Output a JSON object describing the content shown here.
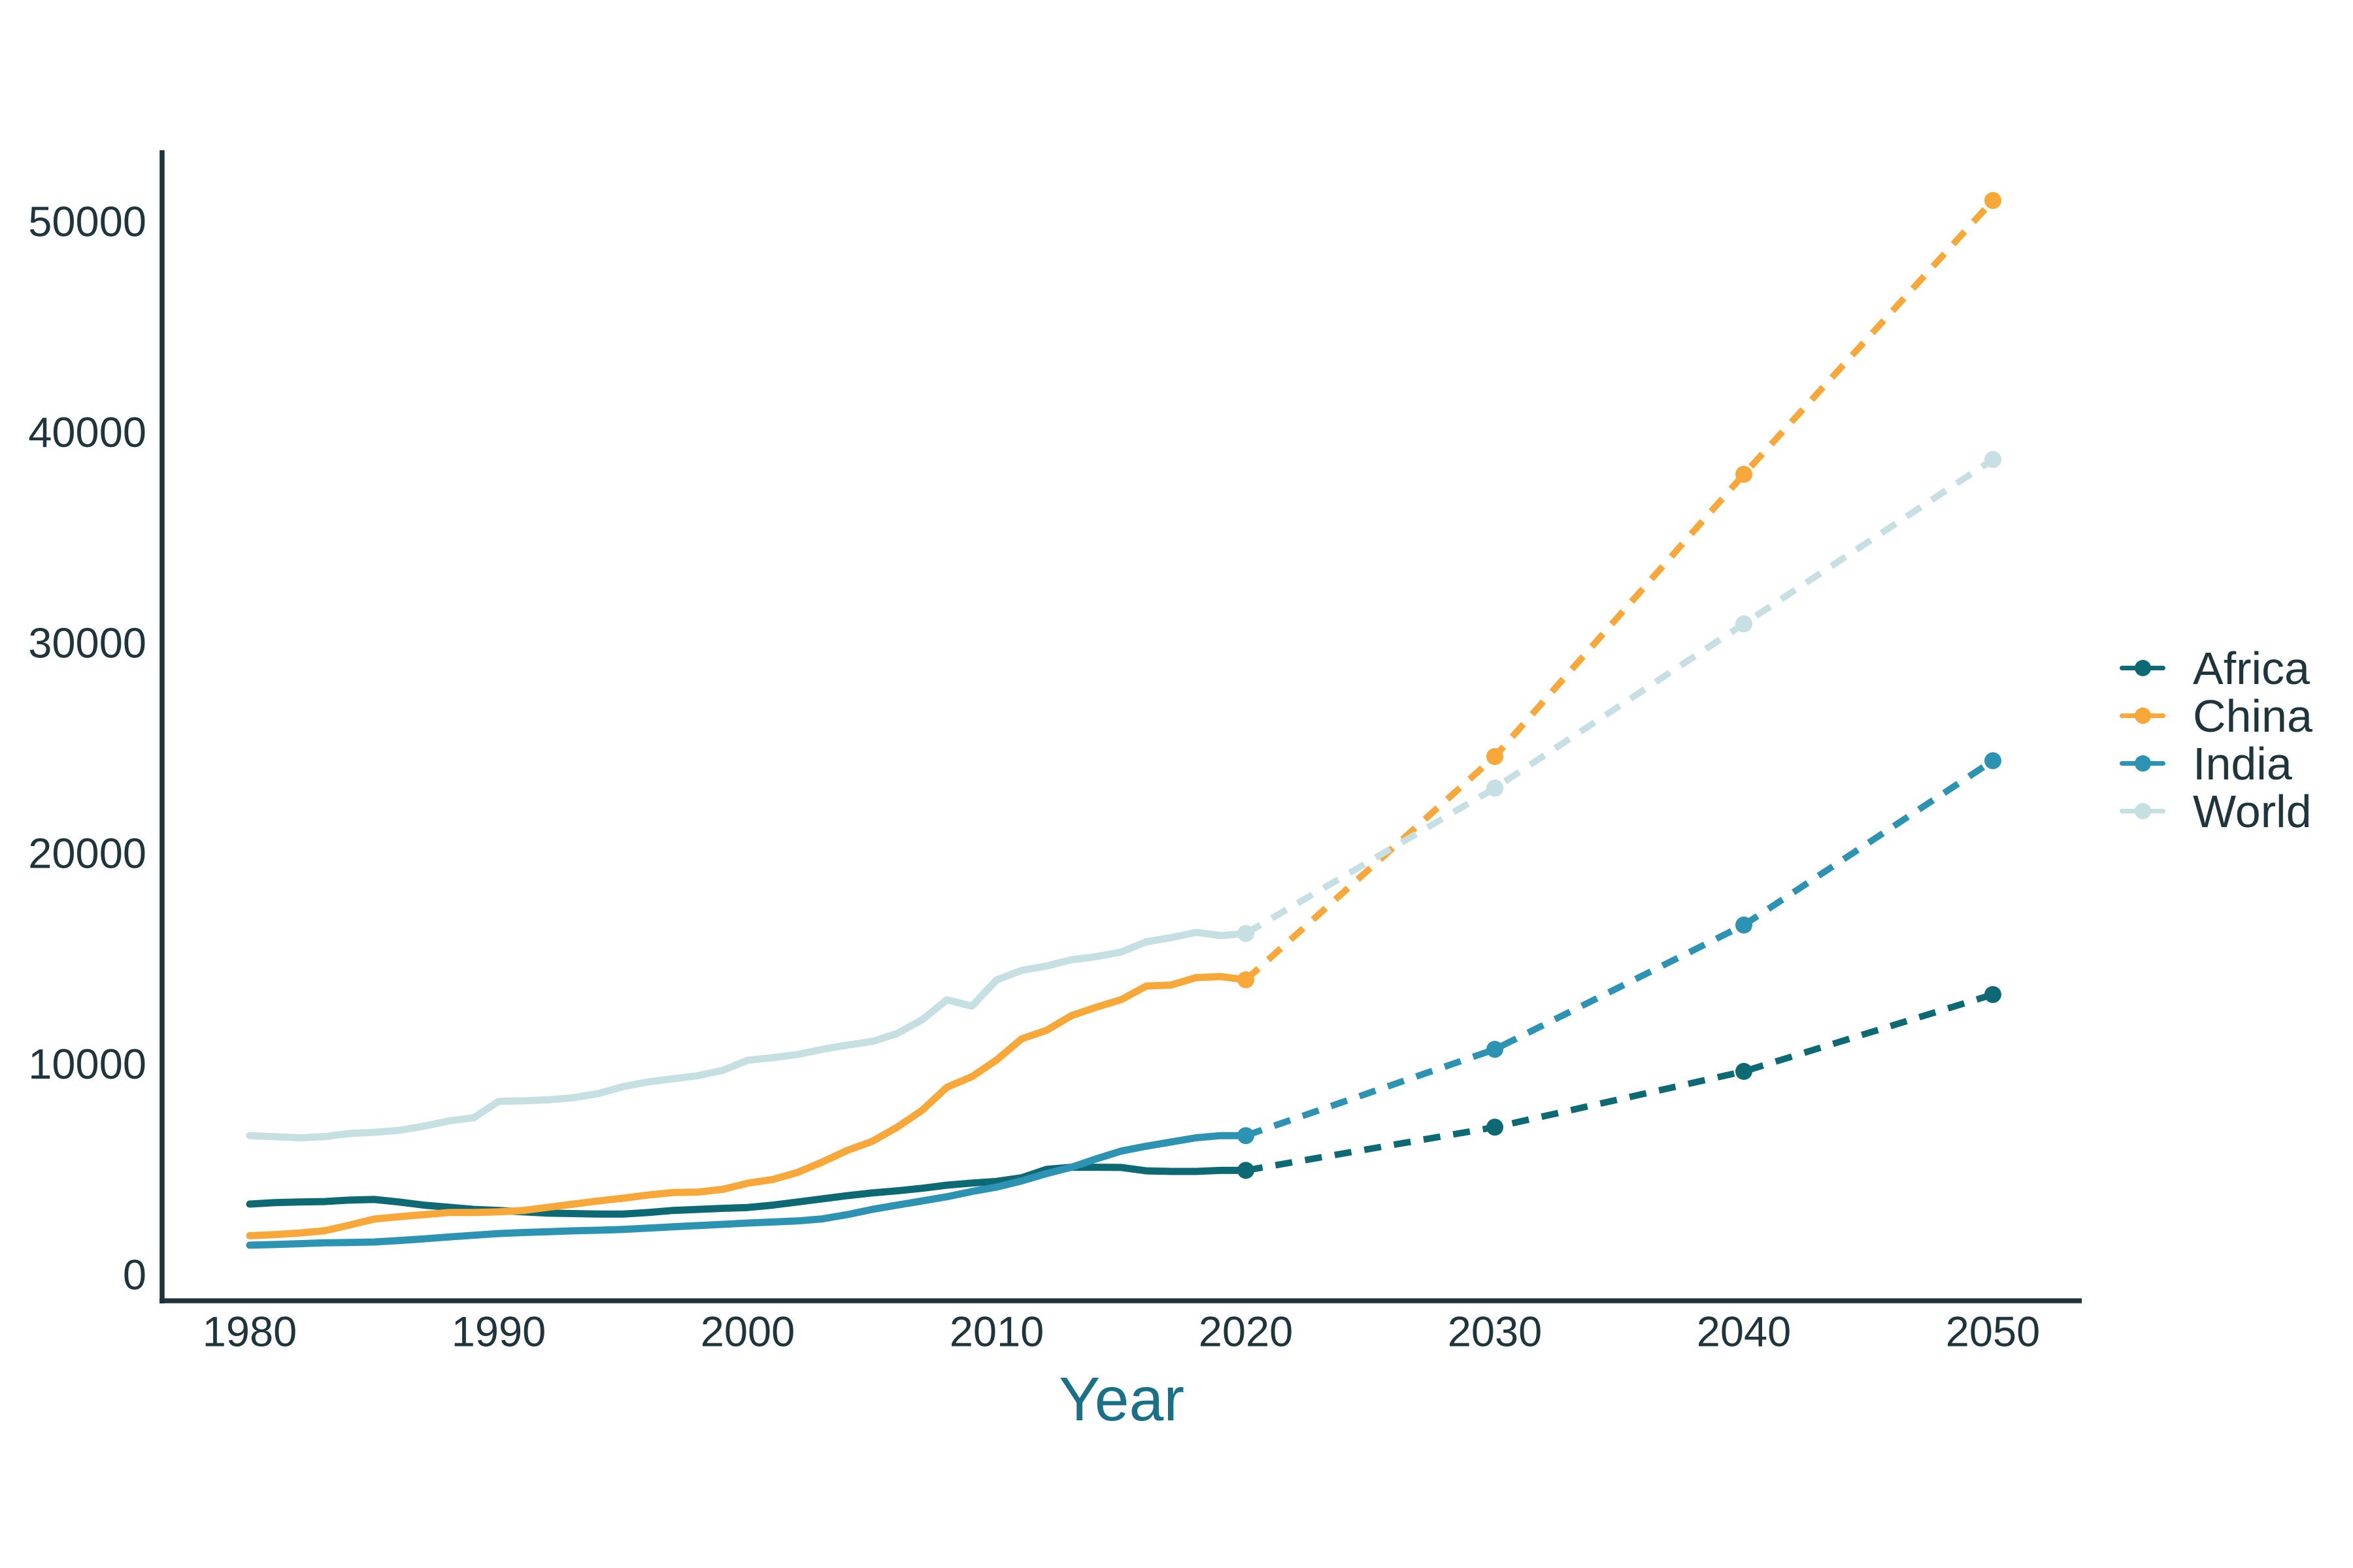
{
  "chart_data": {
    "type": "line",
    "title": "",
    "xlabel": "Year",
    "ylabel": "",
    "x_ticks": [
      1980,
      1990,
      2000,
      2010,
      2020,
      2030,
      2040,
      2050
    ],
    "y_ticks": [
      0,
      10000,
      20000,
      30000,
      40000,
      50000
    ],
    "xlim": [
      1976.5,
      2053.6
    ],
    "ylim": [
      -1250,
      53400
    ],
    "grid": false,
    "legend_position": "right-center",
    "text_color": "#1f353c",
    "axis_color": "#1f353c",
    "xlabel_color": "#197187",
    "series": [
      {
        "name": "Africa",
        "color": "#0d6a75",
        "historical": {
          "x_start": 1980,
          "x_step": 1,
          "values": [
            3350,
            3420,
            3450,
            3470,
            3540,
            3570,
            3450,
            3300,
            3200,
            3100,
            3050,
            2980,
            2920,
            2900,
            2880,
            2880,
            2950,
            3050,
            3100,
            3150,
            3190,
            3300,
            3450,
            3600,
            3750,
            3880,
            3980,
            4100,
            4250,
            4350,
            4430,
            4600,
            5000,
            5100,
            5100,
            5090,
            4930,
            4900,
            4900,
            4950,
            4950
          ]
        },
        "projection": {
          "x": [
            2020,
            2030,
            2040,
            2050
          ],
          "values": [
            4950,
            7000,
            9650,
            13300
          ]
        }
      },
      {
        "name": "China",
        "color": "#f8a838",
        "historical": {
          "x_start": 1980,
          "x_step": 1,
          "values": [
            1850,
            1900,
            1980,
            2080,
            2350,
            2640,
            2750,
            2850,
            2950,
            2950,
            2980,
            3050,
            3200,
            3350,
            3500,
            3630,
            3780,
            3900,
            3920,
            4050,
            4340,
            4520,
            4850,
            5350,
            5900,
            6330,
            7000,
            7800,
            8900,
            9400,
            10200,
            11200,
            11600,
            12300,
            12700,
            13060,
            13700,
            13750,
            14100,
            14150,
            14000
          ]
        },
        "projection": {
          "x": [
            2020,
            2030,
            2040,
            2050
          ],
          "values": [
            14000,
            24600,
            38000,
            51000
          ]
        }
      },
      {
        "name": "India",
        "color": "#2d93b2",
        "historical": {
          "x_start": 1980,
          "x_step": 1,
          "values": [
            1400,
            1430,
            1470,
            1510,
            1530,
            1550,
            1620,
            1700,
            1790,
            1870,
            1950,
            2000,
            2040,
            2080,
            2110,
            2150,
            2210,
            2270,
            2330,
            2390,
            2450,
            2500,
            2550,
            2650,
            2850,
            3100,
            3300,
            3500,
            3700,
            3950,
            4160,
            4450,
            4800,
            5100,
            5500,
            5870,
            6100,
            6300,
            6500,
            6600,
            6600
          ]
        },
        "projection": {
          "x": [
            2020,
            2030,
            2040,
            2050
          ],
          "values": [
            6600,
            10700,
            16600,
            24400
          ]
        }
      },
      {
        "name": "World",
        "color": "#c6dfe2",
        "historical": {
          "x_start": 1980,
          "x_step": 1,
          "values": [
            6600,
            6550,
            6500,
            6550,
            6700,
            6760,
            6850,
            7050,
            7300,
            7450,
            8230,
            8250,
            8300,
            8400,
            8600,
            8930,
            9150,
            9300,
            9450,
            9700,
            10180,
            10300,
            10450,
            10700,
            10900,
            11070,
            11450,
            12100,
            13050,
            12750,
            14000,
            14450,
            14650,
            14950,
            15100,
            15320,
            15800,
            16000,
            16250,
            16100,
            16200
          ]
        },
        "projection": {
          "x": [
            2020,
            2030,
            2040,
            2050
          ],
          "values": [
            16200,
            23100,
            30900,
            38700
          ]
        }
      }
    ]
  },
  "legend": {
    "items": [
      "Africa",
      "China",
      "India",
      "World"
    ]
  }
}
